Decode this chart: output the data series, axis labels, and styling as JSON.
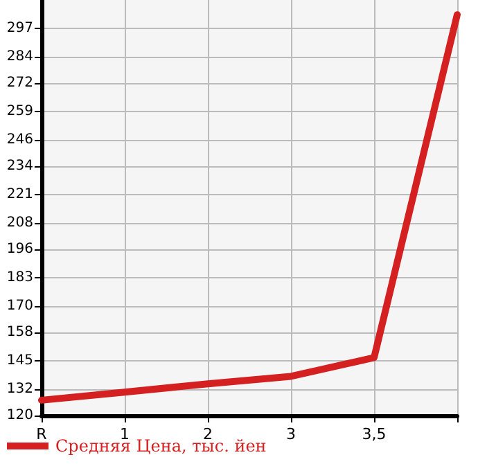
{
  "chart_data": {
    "type": "line",
    "categories": [
      "R",
      "1",
      "2",
      "3",
      "3,5",
      null
    ],
    "series": [
      {
        "name": "Средняя Цена, тыс. йен",
        "color": "#d42020",
        "values": [
          127,
          130.7,
          134.5,
          137.9,
          146.5,
          303.3
        ]
      }
    ],
    "ylim": [
      120,
      310
    ],
    "yticks": [
      120,
      132,
      145,
      158,
      170,
      183,
      196,
      208,
      221,
      234,
      246,
      259,
      272,
      284,
      297
    ],
    "grid": true,
    "legend": "bottom left",
    "marker": "none",
    "line_style": "solid"
  }
}
